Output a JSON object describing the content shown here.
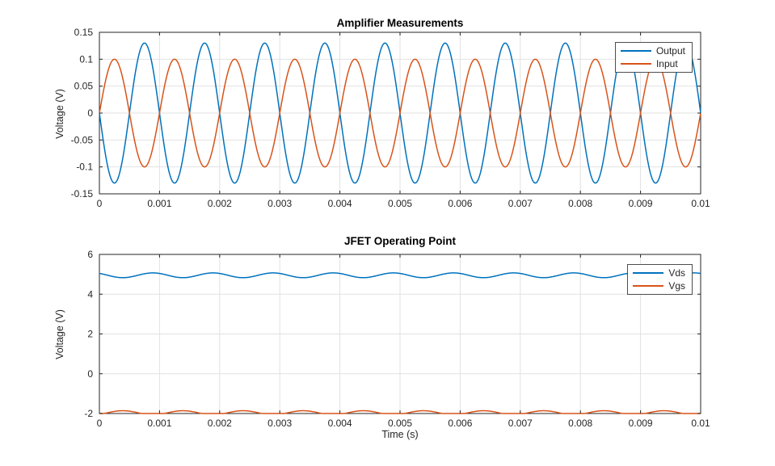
{
  "figure": {
    "background": "#ffffff",
    "axis_color": "#262626",
    "grid_color": "#e2e2e2",
    "tick_label_color": "#262626",
    "accent_blue": "#0072BD",
    "accent_orange": "#D95319"
  },
  "chart_data": [
    {
      "type": "line",
      "title": "Amplifier Measurements",
      "xlabel": "",
      "ylabel": "Voltage (V)",
      "xlim": [
        0,
        0.01
      ],
      "ylim": [
        -0.15,
        0.15
      ],
      "xticks": [
        0,
        0.001,
        0.002,
        0.003,
        0.004,
        0.005,
        0.006,
        0.007,
        0.008,
        0.009,
        0.01
      ],
      "xtick_labels": [
        "0",
        "0.001",
        "0.002",
        "0.003",
        "0.004",
        "0.005",
        "0.006",
        "0.007",
        "0.008",
        "0.009",
        "0.01"
      ],
      "yticks": [
        -0.15,
        -0.1,
        -0.05,
        0,
        0.05,
        0.1,
        0.15
      ],
      "ytick_labels": [
        "-0.15",
        "-0.1",
        "-0.05",
        "0",
        "0.05",
        "0.1",
        "0.15"
      ],
      "grid": true,
      "legend_position": "top-right-inside",
      "series": [
        {
          "name": "Output",
          "color": "#0072BD",
          "waveform": "sine",
          "amplitude_v": 0.13,
          "offset_v": 0,
          "frequency_hz": 1000,
          "phase_deg": 180
        },
        {
          "name": "Input",
          "color": "#D95319",
          "waveform": "sine",
          "amplitude_v": 0.1,
          "offset_v": 0,
          "frequency_hz": 1000,
          "phase_deg": 0
        }
      ]
    },
    {
      "type": "line",
      "title": "JFET Operating Point",
      "xlabel": "Time (s)",
      "ylabel": "Voltage (V)",
      "xlim": [
        0,
        0.01
      ],
      "ylim": [
        -2,
        6
      ],
      "xticks": [
        0,
        0.001,
        0.002,
        0.003,
        0.004,
        0.005,
        0.006,
        0.007,
        0.008,
        0.009,
        0.01
      ],
      "xtick_labels": [
        "0",
        "0.001",
        "0.002",
        "0.003",
        "0.004",
        "0.005",
        "0.006",
        "0.007",
        "0.008",
        "0.009",
        "0.01"
      ],
      "yticks": [
        -2,
        0,
        2,
        4,
        6
      ],
      "ytick_labels": [
        "-2",
        "0",
        "2",
        "4",
        "6"
      ],
      "grid": true,
      "legend_position": "top-right-inside",
      "series": [
        {
          "name": "Vds",
          "color": "#0072BD",
          "waveform": "sine",
          "amplitude_v": 0.12,
          "offset_v": 4.95,
          "frequency_hz": 1000,
          "phase_deg": 130
        },
        {
          "name": "Vgs",
          "color": "#D95319",
          "waveform": "sine",
          "amplitude_v": 0.1,
          "offset_v": -1.96,
          "frequency_hz": 1000,
          "phase_deg": -50
        }
      ]
    }
  ]
}
